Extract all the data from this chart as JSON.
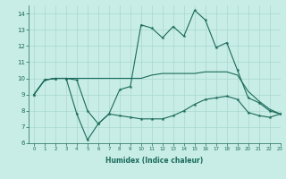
{
  "xlabel": "Humidex (Indice chaleur)",
  "bg_color": "#c8ece6",
  "line_color": "#1a6b5a",
  "grid_color": "#a8d8d0",
  "xlim": [
    -0.5,
    23
  ],
  "ylim": [
    6,
    14.5
  ],
  "xticks": [
    0,
    1,
    2,
    3,
    4,
    5,
    6,
    7,
    8,
    9,
    10,
    11,
    12,
    13,
    14,
    15,
    16,
    17,
    18,
    19,
    20,
    21,
    22,
    23
  ],
  "yticks": [
    6,
    7,
    8,
    9,
    10,
    11,
    12,
    13,
    14
  ],
  "series1": [
    9.0,
    9.9,
    10.0,
    10.0,
    9.9,
    8.0,
    7.2,
    7.8,
    9.3,
    9.5,
    13.3,
    13.1,
    12.5,
    13.2,
    12.6,
    14.2,
    13.6,
    11.9,
    12.2,
    10.5,
    8.8,
    8.5,
    8.0,
    7.8
  ],
  "series2": [
    9.0,
    9.9,
    10.0,
    10.0,
    10.0,
    10.0,
    10.0,
    10.0,
    10.0,
    10.0,
    10.0,
    10.2,
    10.3,
    10.3,
    10.3,
    10.3,
    10.4,
    10.4,
    10.4,
    10.2,
    9.2,
    8.6,
    8.1,
    7.8
  ],
  "series3": [
    9.0,
    9.9,
    10.0,
    10.0,
    7.8,
    6.2,
    7.2,
    7.8,
    7.7,
    7.6,
    7.5,
    7.5,
    7.5,
    7.7,
    8.0,
    8.4,
    8.7,
    8.8,
    8.9,
    8.7,
    7.9,
    7.7,
    7.6,
    7.8
  ]
}
